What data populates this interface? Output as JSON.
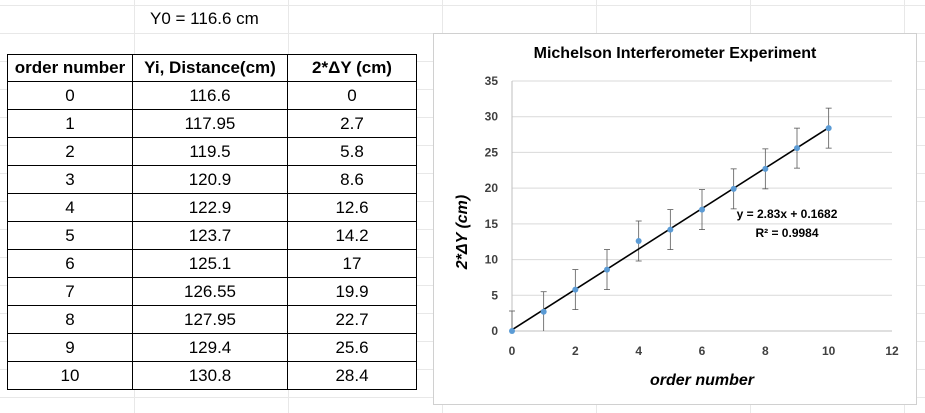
{
  "y0_label": "Y0 = 116.6 cm",
  "table": {
    "headers": [
      "order number",
      "Yi, Distance(cm)",
      "2*ΔY (cm)"
    ],
    "rows": [
      [
        "0",
        "116.6",
        "0"
      ],
      [
        "1",
        "117.95",
        "2.7"
      ],
      [
        "2",
        "119.5",
        "5.8"
      ],
      [
        "3",
        "120.9",
        "8.6"
      ],
      [
        "4",
        "122.9",
        "12.6"
      ],
      [
        "5",
        "123.7",
        "14.2"
      ],
      [
        "6",
        "125.1",
        "17"
      ],
      [
        "7",
        "126.55",
        "19.9"
      ],
      [
        "8",
        "127.95",
        "22.7"
      ],
      [
        "9",
        "129.4",
        "25.6"
      ],
      [
        "10",
        "130.8",
        "28.4"
      ]
    ]
  },
  "chart_data": {
    "type": "scatter",
    "title": "Michelson Interferometer Experiment",
    "xlabel": "order number",
    "ylabel": "2*ΔY (cm)",
    "xlim": [
      0,
      12
    ],
    "ylim": [
      0,
      35
    ],
    "x_ticks": [
      0,
      2,
      4,
      6,
      8,
      10,
      12
    ],
    "y_ticks": [
      0,
      5,
      10,
      15,
      20,
      25,
      30,
      35
    ],
    "grid": "horizontal",
    "legend": "none",
    "series": [
      {
        "x": [
          0,
          1,
          2,
          3,
          4,
          5,
          6,
          7,
          8,
          9,
          10
        ],
        "y": [
          0,
          2.7,
          5.8,
          8.6,
          12.6,
          14.2,
          17,
          19.9,
          22.7,
          25.6,
          28.4
        ],
        "error_y": 2.8,
        "color": "#5b9bd5"
      }
    ],
    "trendline": {
      "slope": 2.83,
      "intercept": 0.1682,
      "equation_label": "y = 2.83x + 0.1682",
      "r2_label": "R² = 0.9984",
      "color": "#000000"
    }
  }
}
